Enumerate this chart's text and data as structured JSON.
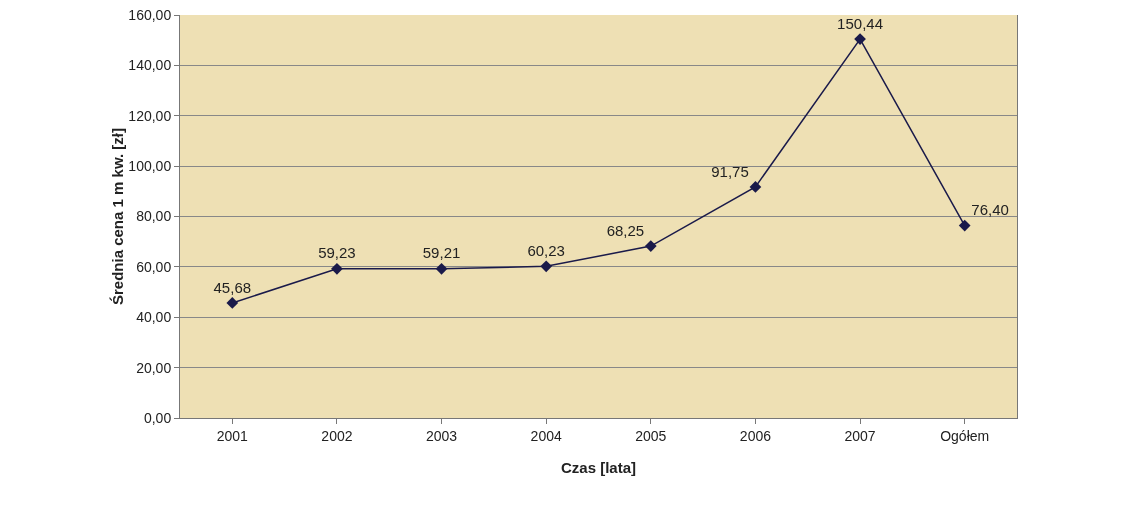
{
  "chart_data": {
    "type": "line",
    "xlabel": "Czas [lata]",
    "ylabel": "Średnia cena 1 m kw. [zł]",
    "categories": [
      "2001",
      "2002",
      "2003",
      "2004",
      "2005",
      "2006",
      "2007",
      "Ogółem"
    ],
    "series": [
      {
        "color": "#1a1a4a",
        "values": [
          45.68,
          59.23,
          59.21,
          60.23,
          68.25,
          91.75,
          150.44,
          76.4
        ],
        "value_labels": [
          "45,68",
          "59,23",
          "59,21",
          "60,23",
          "68,25",
          "91,75",
          "150,44",
          "76,40"
        ]
      }
    ],
    "ylim": [
      0,
      160
    ],
    "yticks": [
      {
        "value": 0,
        "label": "0,00"
      },
      {
        "value": 20,
        "label": "20,00"
      },
      {
        "value": 40,
        "label": "40,00"
      },
      {
        "value": 60,
        "label": "60,00"
      },
      {
        "value": 80,
        "label": "80,00"
      },
      {
        "value": 100,
        "label": "100,00"
      },
      {
        "value": 120,
        "label": "120,00"
      },
      {
        "value": 140,
        "label": "140,00"
      },
      {
        "value": 160,
        "label": "160,00"
      }
    ],
    "grid": "y",
    "marker": "diamond",
    "line_style": "solid"
  }
}
